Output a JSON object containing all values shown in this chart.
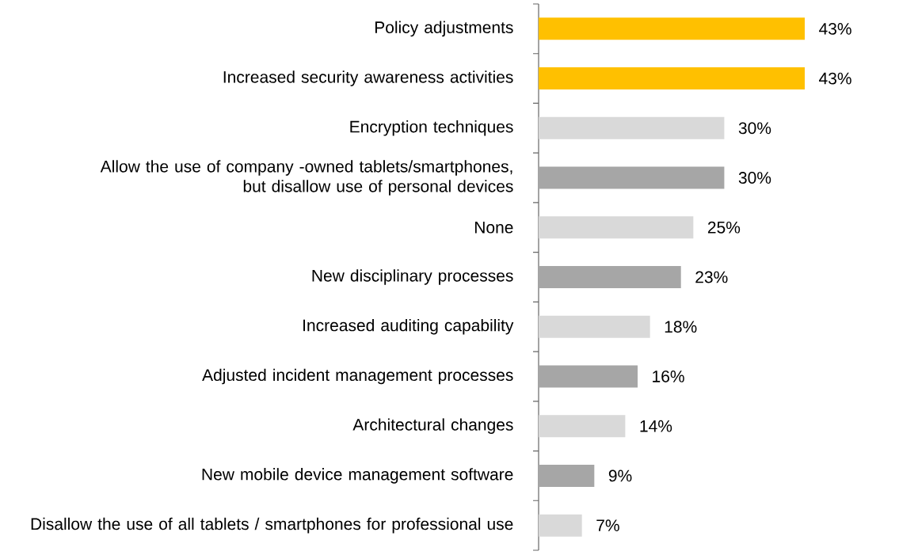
{
  "chart_data": {
    "type": "bar",
    "orientation": "horizontal",
    "categories": [
      "Policy adjustments",
      "Increased security awareness activities",
      "Encryption techniques",
      "Allow the use of company -owned tablets/smartphones, but disallow use of personal devices",
      "None",
      "New disciplinary processes",
      "Increased auditing capability",
      "Adjusted incident management processes",
      "Architectural changes",
      "New mobile device management software",
      "Disallow the use of all tablets / smartphones for professional use"
    ],
    "values": [
      43,
      43,
      30,
      30,
      25,
      23,
      18,
      16,
      14,
      9,
      7
    ],
    "value_labels": [
      "43%",
      "43%",
      "30%",
      "30%",
      "25%",
      "23%",
      "18%",
      "16%",
      "14%",
      "9%",
      "7%"
    ],
    "colors": [
      "#ffc000",
      "#ffc000",
      "#d9d9d9",
      "#a6a6a6",
      "#d9d9d9",
      "#a6a6a6",
      "#d9d9d9",
      "#a6a6a6",
      "#d9d9d9",
      "#a6a6a6",
      "#d9d9d9"
    ]
  }
}
